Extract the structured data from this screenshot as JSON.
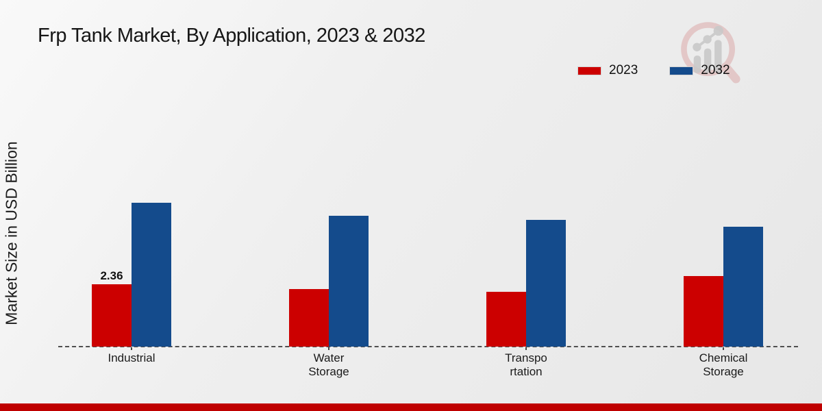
{
  "title": "Frp Tank Market, By Application, 2023 & 2032",
  "ylabel": "Market Size in USD Billion",
  "colors": {
    "series_2023": "#cc0000",
    "series_2032": "#144b8c",
    "footer_bar": "#bf0000",
    "baseline": "#4f4f4f",
    "logo_ring": "#dcaaaa",
    "logo_bars": "#c9c9c9"
  },
  "legend": {
    "items": [
      {
        "label": "2023",
        "color": "#cc0000"
      },
      {
        "label": "2032",
        "color": "#144b8c"
      }
    ]
  },
  "logo_name": "market-research-future-logo",
  "chart_data": {
    "type": "bar",
    "title": "Frp Tank Market, By Application, 2023 & 2032",
    "ylabel": "Market Size in USD Billion",
    "xlabel": "",
    "categories": [
      "Industrial",
      "Water Storage",
      "Transportation",
      "Chemical Storage"
    ],
    "category_display_lines": [
      "Industrial",
      "Water\nStorage",
      "Transpo\nrtation",
      "Chemical\nStorage"
    ],
    "series": [
      {
        "name": "2023",
        "color": "#cc0000",
        "values": [
          2.36,
          2.18,
          2.07,
          2.67
        ]
      },
      {
        "name": "2032",
        "color": "#144b8c",
        "values": [
          5.43,
          4.95,
          4.79,
          4.54
        ]
      }
    ],
    "annotations": [
      {
        "series_index": 0,
        "category_index": 0,
        "text": "2.36"
      }
    ],
    "legend_position": "upper right",
    "grid": false,
    "baseline_style": "dashed"
  }
}
